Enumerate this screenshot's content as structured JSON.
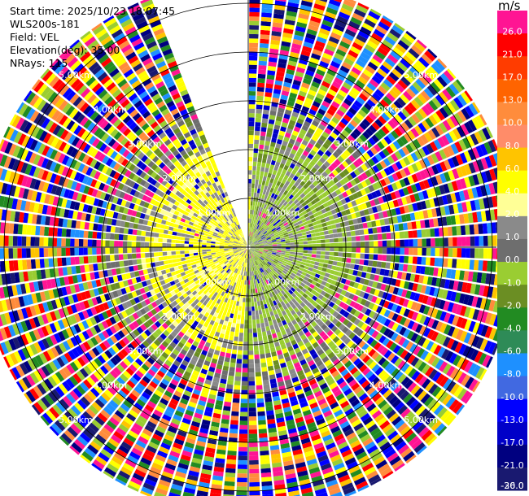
{
  "header": {
    "start_time": "Start time: 2025/10/23 18:07:45",
    "instrument": "WLS200s-181",
    "field": "Field: VEL",
    "elevation": "Elevation(deg): 35.00",
    "nrays": "NRays: 115"
  },
  "colorbar": {
    "unit": "m/s",
    "ticks": [
      "26.0",
      "21.0",
      "17.0",
      "13.0",
      "10.0",
      "8.0",
      "6.0",
      "4.0",
      "2.0",
      "1.0",
      "0.0",
      "-1.0",
      "-2.0",
      "-4.0",
      "-6.0",
      "-8.0",
      "-10.0",
      "-13.0",
      "-17.0",
      "-21.0",
      "-26.0",
      "-30.0"
    ],
    "colors": [
      "#ff1493",
      "#ff0000",
      "#ff3c00",
      "#ff6400",
      "#ff8c3c",
      "#ff8c69",
      "#ffc400",
      "#ffff00",
      "#ffff96",
      "#8a8a8a",
      "#6e6e6e",
      "#9acd32",
      "#6b8e23",
      "#228b22",
      "#2e8b57",
      "#1e90ff",
      "#4169e1",
      "#0000ff",
      "#0000c8",
      "#000080",
      "#191970"
    ]
  },
  "chart_data": {
    "type": "ppi",
    "azimuth_gap_deg": [
      340,
      359
    ],
    "range_rings_km": [
      "1.00km",
      "2.00km",
      "3.00km",
      "4.00km",
      "5.00km"
    ],
    "ring_label_dirs": [
      "NE",
      "SE",
      "SW",
      "NW"
    ],
    "bands": [
      {
        "r_min": 0.0,
        "r_max": 1.0,
        "palette": [
          "#ffff00",
          "#ffff00",
          "#ffff96",
          "#8a8a8a",
          "#9acd32",
          "#6e6e6e"
        ]
      },
      {
        "r_min": 1.0,
        "r_max": 2.0,
        "palette": [
          "#ffff00",
          "#ffff96",
          "#9acd32",
          "#8a8a8a",
          "#6e6e6e",
          "#9acd32"
        ]
      },
      {
        "r_min": 2.0,
        "r_max": 3.0,
        "palette": [
          "#8a8a8a",
          "#9acd32",
          "#ffff00",
          "#6e6e6e",
          "#0000c8",
          "#ff1493",
          "#6b8e23"
        ]
      },
      {
        "r_min": 3.0,
        "r_max": 4.0,
        "palette": [
          "#ff1493",
          "#0000ff",
          "#ffff00",
          "#9acd32",
          "#000080",
          "#ff0000",
          "#1e90ff",
          "#ff8c3c",
          "#228b22"
        ]
      },
      {
        "r_min": 4.0,
        "r_max": 5.5,
        "palette": [
          "#ff1493",
          "#0000ff",
          "#ffff00",
          "#ff0000",
          "#000080",
          "#228b22",
          "#1e90ff",
          "#ff8c3c",
          "#9acd32",
          "#191970",
          "#ffc400"
        ]
      }
    ]
  }
}
